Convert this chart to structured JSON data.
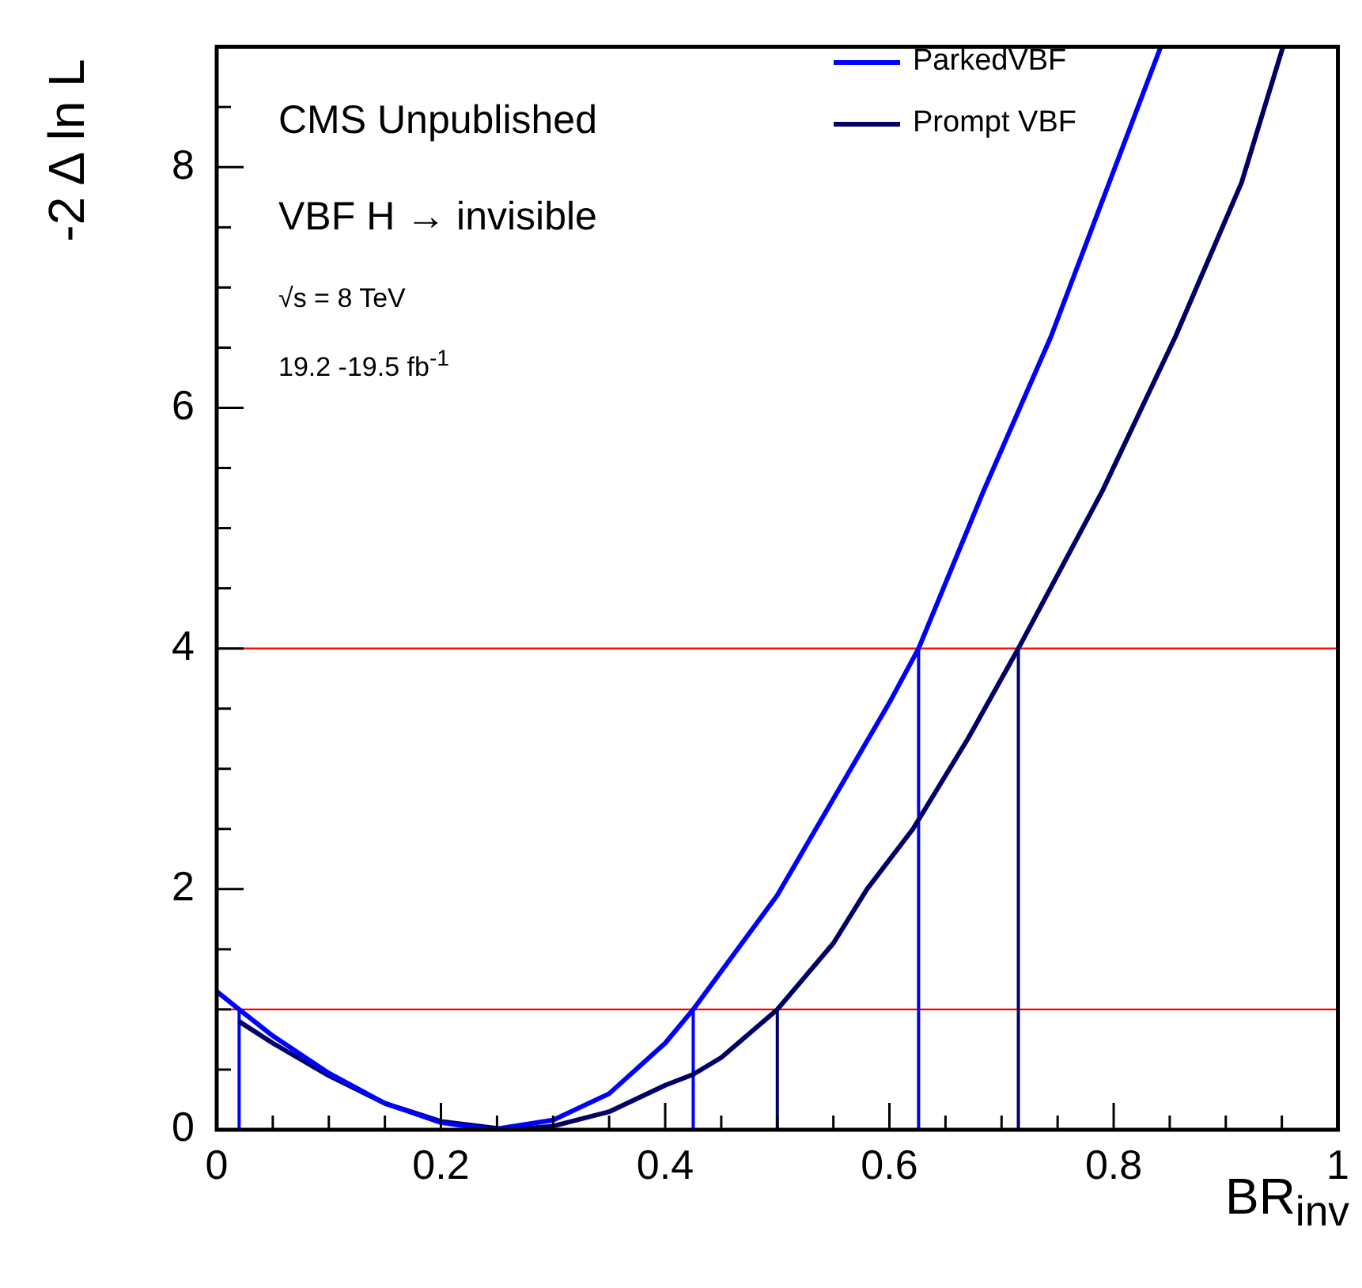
{
  "chart_data": {
    "type": "line",
    "xlabel": "BR$_{inv}$",
    "ylabel": "-2 Δ ln L",
    "xlim": [
      0,
      1
    ],
    "ylim": [
      0,
      9
    ],
    "xticks": [
      0,
      {
        "value": 0.05,
        "label": null
      },
      {
        "value": 0.1,
        "label": null
      },
      {
        "value": 0.15,
        "label": null
      },
      0.2,
      {
        "value": 0.25,
        "label": null
      },
      {
        "value": 0.3,
        "label": null
      },
      {
        "value": 0.35,
        "label": null
      },
      0.4,
      {
        "value": 0.45,
        "label": null
      },
      {
        "value": 0.5,
        "label": null
      },
      {
        "value": 0.55,
        "label": null
      },
      0.6,
      {
        "value": 0.65,
        "label": null
      },
      {
        "value": 0.7,
        "label": null
      },
      {
        "value": 0.75,
        "label": null
      },
      0.8,
      {
        "value": 0.85,
        "label": null
      },
      {
        "value": 0.9,
        "label": null
      },
      {
        "value": 0.95,
        "label": null
      },
      1
    ],
    "yticks": [
      0,
      {
        "value": 0.5,
        "label": null
      },
      {
        "value": 1,
        "label": null
      },
      {
        "value": 1.5,
        "label": null
      },
      2,
      {
        "value": 2.5,
        "label": null
      },
      {
        "value": 3,
        "label": null
      },
      {
        "value": 3.5,
        "label": null
      },
      4,
      {
        "value": 4.5,
        "label": null
      },
      {
        "value": 5,
        "label": null
      },
      {
        "value": 5.5,
        "label": null
      },
      6,
      {
        "value": 6.5,
        "label": null
      },
      {
        "value": 7,
        "label": null
      },
      {
        "value": 7.5,
        "label": null
      },
      8,
      {
        "value": 8.5,
        "label": null
      }
    ],
    "legend": "top right",
    "grid": false,
    "series": [
      {
        "name": "ParkedVBF",
        "color": "#0000ff",
        "x": [
          0,
          0.02,
          0.05,
          0.1,
          0.15,
          0.2,
          0.245,
          0.3,
          0.35,
          0.4,
          0.425,
          0.5,
          0.55,
          0.6,
          0.626,
          0.684,
          0.744,
          0.796,
          0.842
        ],
        "values": [
          1.15,
          1.0,
          0.78,
          0.47,
          0.22,
          0.06,
          0,
          0.08,
          0.3,
          0.72,
          1.0,
          1.95,
          2.75,
          3.55,
          4.0,
          5.31,
          6.59,
          7.87,
          9.0
        ]
      },
      {
        "name": "Prompt VBF",
        "color": "#000066",
        "x": [
          0.02,
          0.05,
          0.1,
          0.15,
          0.2,
          0.26,
          0.3,
          0.35,
          0.4,
          0.425,
          0.45,
          0.5,
          0.55,
          0.58,
          0.621,
          0.67,
          0.715,
          0.79,
          0.855,
          0.914,
          0.951
        ],
        "values": [
          0.9,
          0.72,
          0.45,
          0.22,
          0.07,
          0,
          0.03,
          0.15,
          0.37,
          0.46,
          0.6,
          1.0,
          1.55,
          2.0,
          2.5,
          3.25,
          4.0,
          5.31,
          6.59,
          7.87,
          9.0
        ]
      },
      {
        "color": "#0000ff",
        "x": [
          0.02,
          0.02
        ],
        "values": [
          0,
          1
        ]
      },
      {
        "color": "#0000ff",
        "x": [
          0.425,
          0.425
        ],
        "values": [
          0,
          1
        ]
      },
      {
        "color": "#0000ff",
        "x": [
          0.626,
          0.626
        ],
        "values": [
          0,
          4
        ]
      },
      {
        "color": "#000066",
        "x": [
          0.5,
          0.5
        ],
        "values": [
          0,
          1
        ]
      },
      {
        "color": "#000066",
        "x": [
          0.715,
          0.715
        ],
        "values": [
          0,
          4
        ]
      }
    ],
    "ref_lines": [
      {
        "axis": "y",
        "value": 1,
        "color": "#ff0000"
      },
      {
        "axis": "y",
        "value": 4,
        "color": "#ff0000"
      }
    ],
    "annotations": [
      "CMS Unpublished",
      "VBF H → invisible",
      "√s = 8 TeV",
      "19.2 -19.5 fb$^{-1}$"
    ]
  }
}
